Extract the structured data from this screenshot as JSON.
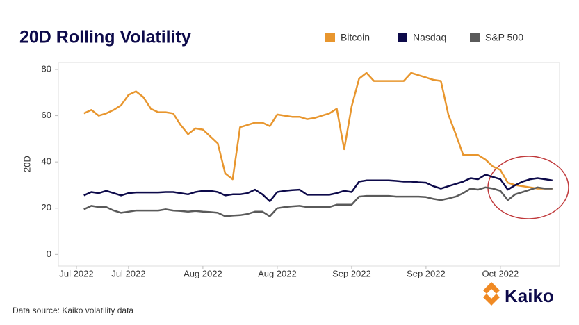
{
  "chart_data": {
    "type": "line",
    "title": "20D Rolling Volatility",
    "y_label": "20D",
    "source": "Data source: Kaiko volatility data",
    "logo": "Kaiko",
    "categories": [
      "Jul 2022",
      null,
      null,
      null,
      null,
      null,
      null,
      "Jul 2022",
      null,
      null,
      null,
      null,
      null,
      null,
      null,
      null,
      null,
      "Aug 2022",
      null,
      null,
      null,
      null,
      null,
      null,
      null,
      null,
      null,
      "Aug 2022",
      null,
      null,
      null,
      null,
      null,
      null,
      null,
      null,
      null,
      "Sep 2022",
      null,
      null,
      null,
      null,
      null,
      null,
      null,
      null,
      null,
      "Sep 2022",
      null,
      null,
      null,
      null,
      null,
      null,
      null,
      null,
      null,
      "Oct 2022",
      null,
      null,
      null,
      null,
      null,
      null,
      null
    ],
    "series": [
      {
        "name": "Bitcoin",
        "color": "#e8962e",
        "values": [
          null,
          61,
          62.5,
          60,
          61,
          62.5,
          64.5,
          69,
          70.5,
          68,
          63,
          61.5,
          61.5,
          61,
          56,
          52,
          54.5,
          54,
          51,
          48,
          35,
          32.5,
          55,
          56,
          57,
          57,
          55.5,
          60.5,
          60,
          59.5,
          59.5,
          58.5,
          59,
          60,
          61,
          63,
          45.5,
          64,
          76,
          78.5,
          75,
          75,
          75,
          75,
          75,
          78.5,
          77.5,
          76.5,
          75.5,
          75,
          60.5,
          52,
          43,
          43,
          43,
          41,
          38,
          36.5,
          31,
          30,
          29.5,
          29,
          28.5,
          28.5,
          28.5
        ]
      },
      {
        "name": "Nasdaq",
        "color": "#0d0a4a",
        "values": [
          null,
          25.5,
          27,
          26.5,
          27.5,
          26.5,
          25.5,
          26.5,
          26.8,
          26.8,
          26.8,
          26.8,
          27,
          27,
          26.5,
          26,
          27,
          27.5,
          27.5,
          27,
          25.5,
          26,
          26,
          26.5,
          28,
          26,
          23,
          27,
          27.5,
          27.8,
          28,
          25.8,
          25.8,
          25.8,
          25.8,
          26.5,
          27.5,
          27,
          31.5,
          32,
          32,
          32,
          32,
          31.8,
          31.5,
          31.5,
          31.2,
          31,
          29.5,
          28.5,
          29.5,
          30.5,
          31.5,
          33,
          32.5,
          34.5,
          33.5,
          32.5,
          28,
          30,
          31.5,
          32.5,
          33,
          32.5,
          32
        ]
      },
      {
        "name": "S&P 500",
        "color": "#5a5a5a",
        "values": [
          null,
          19.5,
          21,
          20.5,
          20.5,
          19,
          18,
          18.5,
          19,
          19,
          19,
          19,
          19.5,
          19,
          18.8,
          18.5,
          18.8,
          18.5,
          18.3,
          18,
          16.5,
          16.8,
          17,
          17.5,
          18.5,
          18.5,
          16.5,
          20,
          20.5,
          20.8,
          21,
          20.5,
          20.5,
          20.5,
          20.5,
          21.5,
          21.5,
          21.5,
          25,
          25.3,
          25.3,
          25.3,
          25.3,
          25,
          25,
          25,
          25,
          24.8,
          24,
          23.5,
          24.2,
          25,
          26.5,
          28.5,
          28,
          29,
          28.5,
          27.5,
          23.5,
          26,
          27,
          28,
          29,
          28.5,
          28.5
        ]
      }
    ],
    "ylim": [
      -5,
      83
    ],
    "yticks": [
      0,
      20,
      40,
      60,
      80
    ],
    "grid": false,
    "legend": "top-right"
  }
}
